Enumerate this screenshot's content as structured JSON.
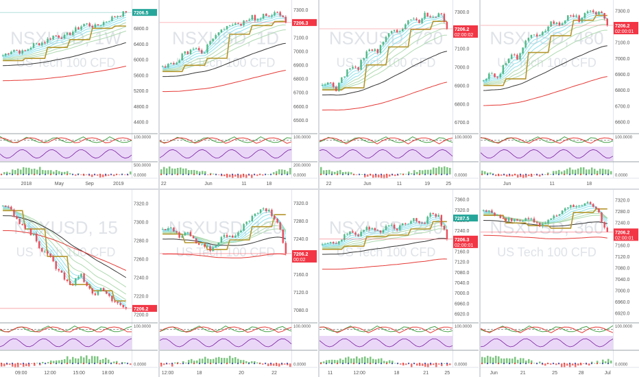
{
  "layout_name": "multi-timeframe chart grid",
  "panes": [
    {
      "watermark": [
        "NSXUSD, 1W",
        "US Tech 100 CFD"
      ],
      "price_ticks": [
        "7200.0",
        "6800.0",
        "6400.0",
        "6000.0",
        "5600.0",
        "5200.0",
        "4800.0",
        "4400.0"
      ],
      "y_range": [
        4200,
        7420
      ],
      "last_price_label": "7206.5",
      "last_price_style": "green",
      "last_price_value": 7206.5,
      "osc_labels": [
        "100.0000",
        "500.0000",
        "0.0000"
      ],
      "time_labels": [
        "2018",
        "May",
        "Sep",
        "2019"
      ],
      "time_positions": [
        0.2,
        0.45,
        0.68,
        0.9
      ],
      "closes": [
        6100,
        6260,
        6180,
        6380,
        6450,
        6620,
        6580,
        6750,
        6920,
        6840,
        6980,
        7120,
        7206
      ],
      "trend": "up"
    },
    {
      "watermark": [
        "NSXUSD, 1D",
        "US Tech 100 CFD"
      ],
      "price_ticks": [
        "7300.0",
        "7200.0",
        "7100.0",
        "7000.0",
        "6900.0",
        "6800.0",
        "6700.0",
        "6600.0",
        "6500.0"
      ],
      "y_range": [
        6430,
        7340
      ],
      "last_price_label": "7206.3",
      "last_price_style": "red",
      "last_price_value": 7206.3,
      "osc_labels": [
        "100.0000",
        "200.0000",
        "0.0000"
      ],
      "time_labels": [
        "22",
        "Jun",
        "11",
        "18"
      ],
      "time_positions": [
        0.03,
        0.37,
        0.64,
        0.83
      ],
      "closes": [
        6880,
        6920,
        6900,
        6980,
        7000,
        7010,
        6990,
        7080,
        7120,
        7150,
        7200,
        7180,
        7230,
        7250,
        7210,
        7270,
        7260,
        7280,
        7206
      ],
      "trend": "up"
    },
    {
      "watermark": [
        "NSXUSD, 720",
        "US Tech 100 CFD"
      ],
      "price_ticks": [
        "7300.0",
        "7200.0",
        "7100.0",
        "7000.0",
        "6900.0",
        "6800.0",
        "6700.0"
      ],
      "y_range": [
        6660,
        7340
      ],
      "last_price_label": "7206.2",
      "last_price_sub": "02:00:02",
      "last_price_style": "red",
      "last_price_value": 7206.2,
      "osc_labels": [
        "100.0000",
        "0.0000"
      ],
      "time_labels": [
        "22",
        "Jun",
        "11",
        "19",
        "25"
      ],
      "time_positions": [
        0.07,
        0.36,
        0.6,
        0.81,
        0.97
      ],
      "closes": [
        6890,
        6920,
        6880,
        6950,
        7000,
        6980,
        7060,
        7100,
        7080,
        7150,
        7200,
        7180,
        7230,
        7260,
        7250,
        7290,
        7270,
        7300,
        7206
      ],
      "trend": "up"
    },
    {
      "watermark": [
        "NSXUSD, 480",
        "US Tech 100 CFD"
      ],
      "price_ticks": [
        "7300.0",
        "7200.0",
        "7100.0",
        "7000.0",
        "6900.0",
        "6800.0",
        "6700.0",
        "6600.0"
      ],
      "y_range": [
        6550,
        7340
      ],
      "last_price_label": "7206.2",
      "last_price_sub": "02:00:01",
      "last_price_style": "red",
      "last_price_value": 7206.2,
      "osc_labels": [
        "100.0000",
        "0.0000"
      ],
      "time_labels": [
        "Jun",
        "11",
        "18"
      ],
      "time_positions": [
        0.2,
        0.54,
        0.82
      ],
      "closes": [
        6870,
        6900,
        6880,
        6960,
        7020,
        7000,
        7090,
        7140,
        7120,
        7180,
        7230,
        7210,
        7250,
        7270,
        7240,
        7290,
        7280,
        7300,
        7206
      ],
      "trend": "up"
    },
    {
      "watermark": [
        "NSXUSD, 15",
        "US Tech 100 CFD"
      ],
      "price_ticks": [
        "7320.0",
        "7300.0",
        "7280.0",
        "7260.0",
        "7240.0",
        "7220.0",
        "7200.0"
      ],
      "y_range": [
        7195,
        7330
      ],
      "last_price_label": "7206.2",
      "last_price_style": "red",
      "last_price_value": 7206.2,
      "osc_labels": [
        "100.0000",
        "0.0000"
      ],
      "time_labels": [
        "09:00",
        "12:00",
        "15:00",
        "18:00"
      ],
      "time_positions": [
        0.16,
        0.38,
        0.6,
        0.82
      ],
      "closes": [
        7318,
        7312,
        7300,
        7292,
        7285,
        7270,
        7262,
        7250,
        7240,
        7232,
        7245,
        7230,
        7222,
        7228,
        7215,
        7210,
        7206
      ],
      "trend": "down"
    },
    {
      "watermark": [
        "NSXUSD, 120",
        "US Tech 100 CFD"
      ],
      "price_ticks": [
        "7320.0",
        "7280.0",
        "7240.0",
        "7200.0",
        "7160.0",
        "7120.0",
        "7080.0"
      ],
      "y_range": [
        7060,
        7340
      ],
      "last_price_label": "7206.2",
      "last_price_sub": "00:02",
      "last_price_style": "red",
      "last_price_value": 7206.2,
      "osc_labels": [
        "100.0000",
        "0.0000"
      ],
      "time_labels": [
        "12:00",
        "18",
        "20",
        "22"
      ],
      "time_positions": [
        0.06,
        0.3,
        0.62,
        0.87
      ],
      "closes": [
        7260,
        7270,
        7240,
        7255,
        7230,
        7220,
        7215,
        7240,
        7250,
        7245,
        7270,
        7290,
        7310,
        7300,
        7280,
        7206
      ],
      "trend": "flat"
    },
    {
      "watermark": [
        "NSXUSD, 240",
        "US Tech 100 CFD"
      ],
      "price_ticks": [
        "7360.0",
        "7320.0",
        "7280.0",
        "7240.0",
        "7200.0",
        "7160.0",
        "7120.0",
        "7080.0",
        "7040.0",
        "7000.0",
        "6960.0",
        "6920.0"
      ],
      "y_range": [
        6900,
        7380
      ],
      "last_price_label": "7206.3",
      "last_price_sub": "02:00:01",
      "last_price_style": "red",
      "last_price_value": 7206.3,
      "extra_price_label": "7287.5",
      "extra_price_value": 7287.5,
      "osc_labels": [
        "100.0000",
        "0.0000"
      ],
      "time_labels": [
        "11",
        "12:00",
        "18",
        "21",
        "25"
      ],
      "time_positions": [
        0.08,
        0.3,
        0.58,
        0.8,
        0.96
      ],
      "closes": [
        7180,
        7200,
        7190,
        7230,
        7220,
        7240,
        7250,
        7230,
        7260,
        7240,
        7270,
        7280,
        7260,
        7300,
        7290,
        7206
      ],
      "trend": "up"
    },
    {
      "watermark": [
        "NSXUSD, 360",
        "US Tech 100 CFD"
      ],
      "price_ticks": [
        "7320.0",
        "7280.0",
        "7240.0",
        "7200.0",
        "7160.0",
        "7120.0",
        "7080.0",
        "7040.0",
        "7000.0",
        "6960.0",
        "6920.0"
      ],
      "y_range": [
        6900,
        7340
      ],
      "last_price_label": "7206.2",
      "last_price_sub": "02:00:01",
      "last_price_style": "red",
      "last_price_value": 7206.2,
      "osc_labels": [
        "100.0000",
        "0.0000"
      ],
      "time_labels": [
        "Jun",
        "21",
        "25",
        "28",
        "Jul"
      ],
      "time_positions": [
        0.1,
        0.32,
        0.56,
        0.76,
        0.96
      ],
      "closes": [
        7290,
        7270,
        7250,
        7240,
        7260,
        7230,
        7250,
        7280,
        7300,
        7310,
        7290,
        7206
      ],
      "trend": "flat"
    }
  ],
  "colors": {
    "up_candle": "#53b987",
    "down_candle": "#eb4d5c",
    "ema_slow": "#333333",
    "ema_long": "#e53935",
    "cloud_cyan": "#80deea",
    "cloud_green": "#a5d6a7",
    "stepline": "#b5952b",
    "osc_band": "#ead7f7",
    "histo_up": "#66bb6a",
    "histo_down": "#ef5350",
    "watermark": "#dfe3e8",
    "tag_red": "#f23645",
    "tag_green": "#26a69a"
  }
}
